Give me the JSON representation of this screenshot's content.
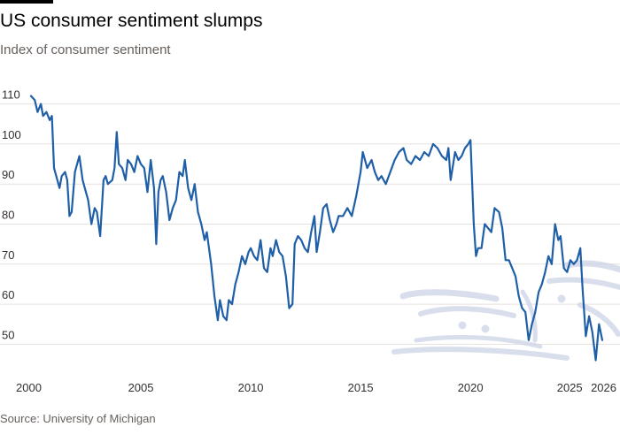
{
  "title": "US consumer sentiment slumps",
  "subtitle": "Index of consumer sentiment",
  "source": "Source: University of Michigan",
  "colors": {
    "line": "#1f5fa8",
    "gridline": "#e6e1dc",
    "watermark": "#cdd3e6"
  },
  "watermark_icon": "arabic-calligraphy-watermark",
  "chart_data": {
    "type": "line",
    "title": "US consumer sentiment slumps",
    "subtitle": "Index of consumer sentiment",
    "xlabel": "",
    "ylabel": "",
    "xlim": [
      2000,
      2026
    ],
    "ylim": [
      45,
      115
    ],
    "x_ticks": [
      2000,
      2005,
      2010,
      2015,
      2020,
      2025,
      2026
    ],
    "y_ticks": [
      50,
      60,
      70,
      80,
      90,
      100,
      110
    ],
    "grid": true,
    "legend": "none",
    "series": [
      {
        "x": [
          2000.0,
          2000.17,
          2000.3,
          2000.45,
          2000.55,
          2000.7,
          2000.85,
          2000.95,
          2001.05,
          2001.15,
          2001.3,
          2001.4,
          2001.55,
          2001.65,
          2001.75,
          2001.85,
          2002.0,
          2002.2,
          2002.35,
          2002.5,
          2002.6,
          2002.75,
          2002.9,
          2003.0,
          2003.15,
          2003.3,
          2003.4,
          2003.5,
          2003.7,
          2003.8,
          2003.9,
          2004.0,
          2004.15,
          2004.3,
          2004.4,
          2004.55,
          2004.7,
          2004.85,
          2005.0,
          2005.15,
          2005.3,
          2005.45,
          2005.6,
          2005.7,
          2005.8,
          2005.9,
          2006.0,
          2006.15,
          2006.3,
          2006.45,
          2006.6,
          2006.75,
          2006.9,
          2007.0,
          2007.15,
          2007.3,
          2007.45,
          2007.6,
          2007.75,
          2007.9,
          2008.0,
          2008.2,
          2008.35,
          2008.5,
          2008.6,
          2008.75,
          2008.9,
          2009.0,
          2009.15,
          2009.3,
          2009.45,
          2009.6,
          2009.75,
          2009.9,
          2010.0,
          2010.15,
          2010.3,
          2010.45,
          2010.6,
          2010.75,
          2010.9,
          2011.0,
          2011.15,
          2011.3,
          2011.45,
          2011.6,
          2011.75,
          2011.9,
          2012.0,
          2012.15,
          2012.3,
          2012.45,
          2012.6,
          2012.75,
          2012.9,
          2013.0,
          2013.15,
          2013.3,
          2013.45,
          2013.6,
          2013.75,
          2013.9,
          2014.0,
          2014.2,
          2014.4,
          2014.6,
          2014.8,
          2015.0,
          2015.1,
          2015.3,
          2015.5,
          2015.65,
          2015.8,
          2015.95,
          2016.15,
          2016.35,
          2016.55,
          2016.75,
          2016.95,
          2017.1,
          2017.3,
          2017.5,
          2017.7,
          2017.9,
          2018.1,
          2018.3,
          2018.5,
          2018.7,
          2018.9,
          2019.0,
          2019.1,
          2019.3,
          2019.45,
          2019.6,
          2019.75,
          2019.9,
          2020.0,
          2020.15,
          2020.25,
          2020.35,
          2020.5,
          2020.65,
          2020.8,
          2020.95,
          2021.1,
          2021.3,
          2021.45,
          2021.6,
          2021.75,
          2021.9,
          2022.05,
          2022.2,
          2022.35,
          2022.5,
          2022.65,
          2022.8,
          2022.95,
          2023.1,
          2023.25,
          2023.4,
          2023.55,
          2023.7,
          2023.85,
          2024.0,
          2024.1,
          2024.25,
          2024.4,
          2024.55,
          2024.7,
          2024.85,
          2025.0,
          2025.1,
          2025.25,
          2025.4,
          2025.55,
          2025.7,
          2025.85,
          2026.0
        ],
        "values": [
          112,
          111,
          108,
          110,
          107,
          108,
          106,
          107,
          94,
          92,
          89,
          92,
          93,
          91,
          82,
          83,
          93,
          97,
          91,
          88,
          86,
          80,
          84,
          83,
          77,
          91,
          92,
          90,
          91,
          94,
          103,
          95,
          94,
          91,
          96,
          95,
          93,
          97,
          95,
          94,
          88,
          96,
          89,
          75,
          88,
          91,
          92,
          88,
          81,
          84,
          86,
          93,
          92,
          96,
          89,
          86,
          90,
          83,
          80,
          76,
          78,
          70,
          62,
          56,
          61,
          57,
          56,
          61,
          60,
          65,
          68,
          72,
          70,
          73,
          74,
          72,
          71,
          76,
          69,
          68,
          74,
          72,
          76,
          73,
          72,
          67,
          59,
          60,
          75,
          77,
          76,
          74,
          73,
          78,
          82,
          73,
          78,
          84,
          85,
          81,
          78,
          80,
          82,
          82,
          84,
          82,
          87,
          93,
          98,
          94,
          96,
          93,
          91,
          92,
          90,
          93,
          96,
          98,
          99,
          96,
          95,
          97,
          96,
          98,
          97,
          100,
          99,
          97,
          96,
          99,
          91,
          98,
          96,
          97,
          99,
          100,
          101,
          80,
          72,
          74,
          74,
          80,
          79,
          78,
          84,
          83,
          79,
          71,
          71,
          69,
          67,
          62,
          59,
          58,
          51,
          55,
          58,
          63,
          65,
          68,
          72,
          70,
          80,
          76,
          77,
          69,
          68,
          71,
          70,
          71,
          74,
          64,
          52,
          57,
          53,
          46,
          55,
          51
        ]
      }
    ]
  }
}
